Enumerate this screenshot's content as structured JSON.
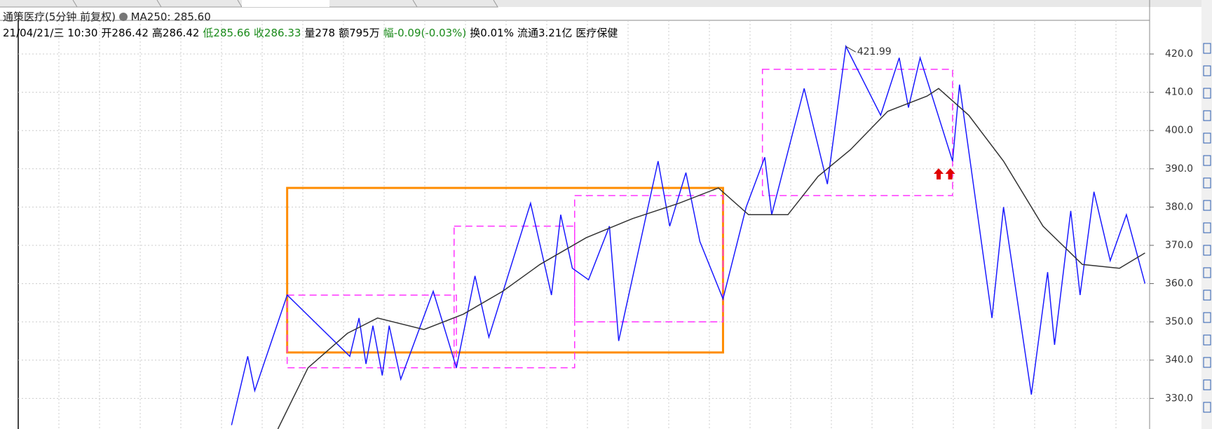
{
  "chart_data": {
    "type": "line",
    "title": "通策医疗(5分钟 前复权)",
    "indicator": "MA250: 285.60",
    "info": [
      {
        "text": "21/04/21/三 10:30",
        "color": "#000000"
      },
      {
        "text": "开286.42",
        "color": "#000000"
      },
      {
        "text": "高286.42",
        "color": "#000000"
      },
      {
        "text": "低285.66",
        "color": "#1a8a1a"
      },
      {
        "text": "收286.33",
        "color": "#1a8a1a"
      },
      {
        "text": "量278",
        "color": "#000000"
      },
      {
        "text": "额795万",
        "color": "#000000"
      },
      {
        "text": "幅-0.09(-0.03%)",
        "color": "#1a8a1a"
      },
      {
        "text": "换0.01%",
        "color": "#000000"
      },
      {
        "text": "流通3.21亿",
        "color": "#000000"
      },
      {
        "text": "医疗保健",
        "color": "#000000"
      }
    ],
    "xlim": [
      0,
      488
    ],
    "ylim": [
      322,
      428.8
    ],
    "yticks": [
      {
        "value": 330,
        "label": "330.0"
      },
      {
        "value": 340,
        "label": "340.0"
      },
      {
        "value": 350,
        "label": "350.0"
      },
      {
        "value": 360,
        "label": "360.0"
      },
      {
        "value": 370,
        "label": "370.0"
      },
      {
        "value": 380,
        "label": "380.0"
      },
      {
        "value": 390,
        "label": "390.0"
      },
      {
        "value": 400,
        "label": "400.0"
      },
      {
        "value": 410,
        "label": "410.0"
      },
      {
        "value": 420,
        "label": "420.0"
      }
    ],
    "grid": true,
    "series": [
      {
        "name": "zigzag",
        "color": "#1a1aff",
        "x": [
          92,
          99,
          102,
          116,
          143,
          147,
          150,
          153,
          157,
          160,
          165,
          179,
          189,
          197,
          203,
          221,
          230,
          234,
          239,
          246,
          255,
          259,
          276,
          281,
          288,
          294,
          304,
          314,
          322,
          325,
          339,
          349,
          357,
          372,
          380,
          384,
          389,
          403,
          406,
          420,
          425,
          437,
          444,
          447,
          454,
          458,
          464,
          471,
          478,
          486
        ],
        "values": [
          323,
          341,
          332,
          357,
          341,
          351,
          339,
          349,
          336,
          349,
          335,
          358,
          338,
          362,
          346,
          381,
          357,
          378,
          364,
          361,
          375,
          345,
          392,
          375,
          389,
          371,
          356,
          380,
          393,
          378,
          411,
          386,
          422,
          404,
          419,
          406,
          419,
          392,
          412,
          351,
          380,
          331,
          363,
          344,
          379,
          357,
          384,
          366,
          378,
          360
        ]
      },
      {
        "name": "MA250",
        "color": "#333333",
        "x": [
          112,
          125,
          142,
          155,
          175,
          192,
          209,
          225,
          245,
          265,
          285,
          302,
          315,
          332,
          345,
          359,
          375,
          392,
          397,
          410,
          425,
          442,
          459,
          475,
          486
        ],
        "values": [
          322,
          338,
          347,
          351,
          348,
          352,
          358,
          365,
          372,
          377,
          381,
          385,
          378,
          378,
          388,
          395,
          405,
          409,
          411,
          404,
          392,
          375,
          365,
          364,
          368
        ]
      }
    ],
    "boxes": [
      {
        "color": "#ff8c00",
        "x": [
          116,
          304
        ],
        "y": [
          342,
          385
        ]
      },
      {
        "color": "#ff33ff",
        "x": [
          116,
          189
        ],
        "y": [
          338,
          357
        ]
      },
      {
        "color": "#ff33ff",
        "x": [
          188,
          240
        ],
        "y": [
          338,
          375
        ]
      },
      {
        "color": "#ff33ff",
        "x": [
          240,
          304
        ],
        "y": [
          350,
          383
        ]
      },
      {
        "color": "#ff33ff",
        "x": [
          321,
          403
        ],
        "y": [
          383,
          416
        ]
      }
    ],
    "peak": {
      "x": 357,
      "value": 421.99
    },
    "markers": [
      {
        "x": 397,
        "y": 388.5
      },
      {
        "x": 402,
        "y": 388.5
      }
    ]
  }
}
